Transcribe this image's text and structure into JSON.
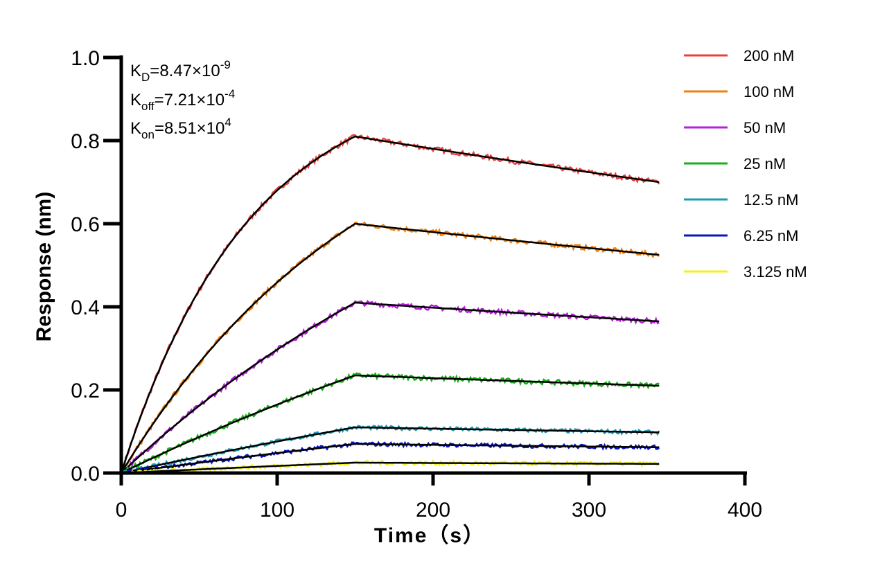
{
  "chart_data": {
    "type": "line",
    "xlabel": "Time（s）",
    "ylabel": "Response (nm)",
    "xlim": [
      0,
      400
    ],
    "ylim": [
      0,
      1.0
    ],
    "x_ticks": [
      0,
      100,
      200,
      300,
      400
    ],
    "y_ticks": [
      0.0,
      0.2,
      0.4,
      0.6,
      0.8,
      1.0
    ],
    "x_tick_labels": [
      "0",
      "100",
      "200",
      "300",
      "400"
    ],
    "y_tick_labels": [
      "0.0",
      "0.2",
      "0.4",
      "0.6",
      "0.8",
      "1.0"
    ],
    "grid": false,
    "legend_position": "right",
    "annotations": {
      "kd": {
        "symbol": "K",
        "subscript": "D",
        "mantissa": "=8.47×10",
        "exponent": "-9"
      },
      "koff": {
        "symbol": "K",
        "subscript": "off",
        "mantissa": "=7.21×10",
        "exponent": "-4"
      },
      "kon": {
        "symbol": "K",
        "subscript": "on",
        "mantissa": "=8.51×10",
        "exponent": "4"
      }
    },
    "phases": {
      "association_end": 150,
      "end": 345
    },
    "fit_color": "#000000",
    "series": [
      {
        "name": "200 nM",
        "color": "#e8413c",
        "peak": 0.81,
        "end": 0.7
      },
      {
        "name": "100 nM",
        "color": "#f07f0e",
        "peak": 0.6,
        "end": 0.525
      },
      {
        "name": "50 nM",
        "color": "#b520d8",
        "peak": 0.41,
        "end": 0.365
      },
      {
        "name": "25 nM",
        "color": "#1aae1a",
        "peak": 0.235,
        "end": 0.21
      },
      {
        "name": "12.5 nM",
        "color": "#1d9ab0",
        "peak": 0.11,
        "end": 0.098
      },
      {
        "name": "6.25 nM",
        "color": "#0a13c2",
        "peak": 0.07,
        "end": 0.062
      },
      {
        "name": "3.125 nM",
        "color": "#f2f21a",
        "peak": 0.025,
        "end": 0.022
      }
    ]
  }
}
